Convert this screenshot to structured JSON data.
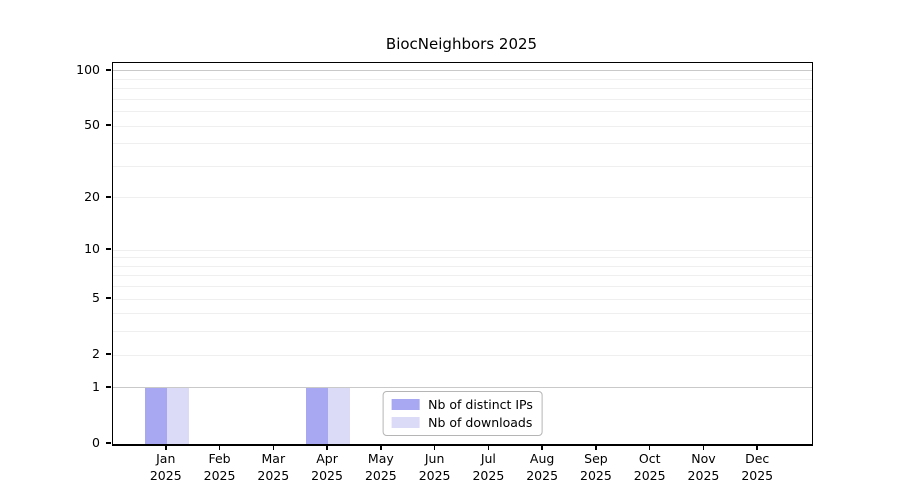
{
  "chart_data": {
    "type": "bar",
    "title": "BiocNeighbors 2025",
    "y_scale": "log1p",
    "ylim": [
      0,
      110.5
    ],
    "categories": [
      "Jan 2025",
      "Feb 2025",
      "Mar 2025",
      "Apr 2025",
      "May 2025",
      "Jun 2025",
      "Jul 2025",
      "Aug 2025",
      "Sep 2025",
      "Oct 2025",
      "Nov 2025",
      "Dec 2025"
    ],
    "series": [
      {
        "name": "Nb of distinct IPs",
        "color": "#a7a7f2",
        "values": [
          1,
          0,
          0,
          1,
          0,
          0,
          0,
          0,
          0,
          0,
          0,
          0
        ]
      },
      {
        "name": "Nb of downloads",
        "color": "#dbdbf8",
        "values": [
          1,
          0,
          0,
          1,
          0,
          0,
          0,
          0,
          0,
          0,
          0,
          0
        ]
      }
    ],
    "y_ticks": [
      0,
      1,
      2,
      5,
      10,
      20,
      50,
      100
    ],
    "grid": {
      "minor_lines": [
        2,
        3,
        4,
        5,
        6,
        7,
        8,
        9,
        10,
        20,
        30,
        40,
        50,
        60,
        70,
        80,
        90
      ],
      "major_lines": [
        1,
        100
      ],
      "minor_color": "#efefef",
      "major_color": "#c9c9c9"
    },
    "legend_position": "lower center",
    "xlabel": "",
    "ylabel": ""
  }
}
